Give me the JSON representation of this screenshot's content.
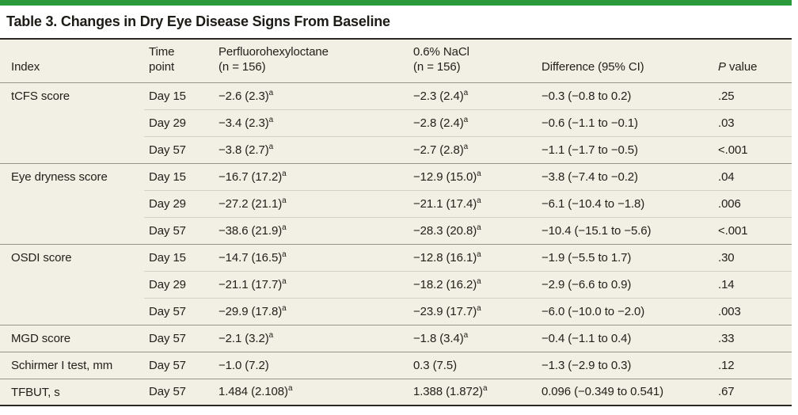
{
  "title": "Table 3. Changes in Dry Eye Disease Signs From Baseline",
  "colors": {
    "accent_green": "#2b9a3b",
    "table_background": "#f2efe4",
    "dark_rule": "#2b2722",
    "group_rule": "#96948a",
    "inner_rule": "#d3d1c6",
    "text": "#23211c"
  },
  "table": {
    "headers": {
      "index": "Index",
      "time_line1": "Time",
      "time_line2": "point",
      "drug_line1": "Perfluorohexyloctane",
      "drug_line2": "(n = 156)",
      "nacl_line1": "0.6% NaCl",
      "nacl_line2": "(n = 156)",
      "difference": "Difference (95% CI)",
      "p_italic": "P",
      "p_rest": " value"
    },
    "rows": [
      {
        "index": "tCFS score",
        "time": "Day 15",
        "drug": "−2.6 (2.3)",
        "drug_sup": "a",
        "nacl": "−2.3 (2.4)",
        "nacl_sup": "a",
        "diff": "−0.3 (−0.8 to 0.2)",
        "p": ".25"
      },
      {
        "index": "",
        "time": "Day 29",
        "drug": "−3.4 (2.3)",
        "drug_sup": "a",
        "nacl": "−2.8 (2.4)",
        "nacl_sup": "a",
        "diff": "−0.6 (−1.1 to −0.1)",
        "p": ".03"
      },
      {
        "index": "",
        "time": "Day 57",
        "drug": "−3.8 (2.7)",
        "drug_sup": "a",
        "nacl": "−2.7 (2.8)",
        "nacl_sup": "a",
        "diff": "−1.1 (−1.7 to −0.5)",
        "p": "<.001"
      },
      {
        "index": "Eye dryness score",
        "time": "Day 15",
        "drug": "−16.7 (17.2)",
        "drug_sup": "a",
        "nacl": "−12.9 (15.0)",
        "nacl_sup": "a",
        "diff": "−3.8 (−7.4 to −0.2)",
        "p": ".04"
      },
      {
        "index": "",
        "time": "Day 29",
        "drug": "−27.2 (21.1)",
        "drug_sup": "a",
        "nacl": "−21.1 (17.4)",
        "nacl_sup": "a",
        "diff": "−6.1 (−10.4 to −1.8)",
        "p": ".006"
      },
      {
        "index": "",
        "time": "Day 57",
        "drug": "−38.6 (21.9)",
        "drug_sup": "a",
        "nacl": "−28.3 (20.8)",
        "nacl_sup": "a",
        "diff": "−10.4 (−15.1 to −5.6)",
        "p": "<.001"
      },
      {
        "index": "OSDI score",
        "time": "Day 15",
        "drug": "−14.7 (16.5)",
        "drug_sup": "a",
        "nacl": "−12.8 (16.1)",
        "nacl_sup": "a",
        "diff": "−1.9 (−5.5 to 1.7)",
        "p": ".30"
      },
      {
        "index": "",
        "time": "Day 29",
        "drug": "−21.1 (17.7)",
        "drug_sup": "a",
        "nacl": "−18.2 (16.2)",
        "nacl_sup": "a",
        "diff": "−2.9 (−6.6 to 0.9)",
        "p": ".14"
      },
      {
        "index": "",
        "time": "Day 57",
        "drug": "−29.9 (17.8)",
        "drug_sup": "a",
        "nacl": "−23.9 (17.7)",
        "nacl_sup": "a",
        "diff": "−6.0 (−10.0 to −2.0)",
        "p": ".003"
      },
      {
        "index": "MGD score",
        "time": "Day 57",
        "drug": "−2.1 (3.2)",
        "drug_sup": "a",
        "nacl": "−1.8 (3.4)",
        "nacl_sup": "a",
        "diff": "−0.4 (−1.1 to 0.4)",
        "p": ".33"
      },
      {
        "index": "Schirmer I test, mm",
        "time": "Day 57",
        "drug": "−1.0 (7.2)",
        "drug_sup": "",
        "nacl": "0.3 (7.5)",
        "nacl_sup": "",
        "diff": "−1.3 (−2.9 to 0.3)",
        "p": ".12"
      },
      {
        "index": "TFBUT, s",
        "time": "Day 57",
        "drug": "1.484 (2.108)",
        "drug_sup": "a",
        "nacl": "1.388 (1.872)",
        "nacl_sup": "a",
        "diff": "0.096 (−0.349 to 0.541)",
        "p": ".67"
      }
    ]
  }
}
